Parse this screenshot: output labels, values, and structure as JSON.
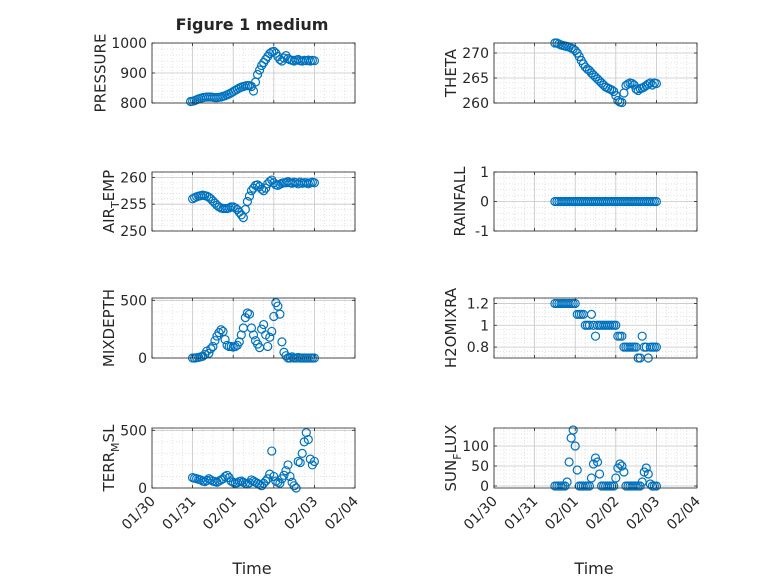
{
  "figure": {
    "title": "Figure 1 medium",
    "xlabel": "Time",
    "marker_color": "#0072BD",
    "grid": true
  },
  "chart_data": [
    {
      "type": "scatter",
      "ylabel": "PRESSURE",
      "ylim": [
        800,
        1000
      ],
      "yticks": [
        "800",
        "900",
        "1000"
      ],
      "ytick_values": [
        800,
        900,
        1000
      ],
      "x": [
        0.95,
        1.0,
        1.05,
        1.1,
        1.15,
        1.2,
        1.25,
        1.3,
        1.35,
        1.4,
        1.45,
        1.5,
        1.55,
        1.6,
        1.65,
        1.7,
        1.75,
        1.8,
        1.85,
        1.9,
        1.95,
        2.0,
        2.05,
        2.1,
        2.15,
        2.2,
        2.25,
        2.3,
        2.35,
        2.4,
        2.45,
        2.5,
        2.55,
        2.6,
        2.65,
        2.7,
        2.75,
        2.8,
        2.85,
        2.9,
        2.95,
        3.0,
        3.05,
        3.1,
        3.15,
        3.2,
        3.25,
        3.3,
        3.35,
        3.4,
        3.45,
        3.5,
        3.55,
        3.6,
        3.65,
        3.7,
        3.75,
        3.8,
        3.85,
        3.9,
        3.95,
        4.0
      ],
      "y": [
        805,
        806,
        808,
        811,
        814,
        816,
        818,
        819,
        820,
        820,
        820,
        819,
        818,
        818,
        819,
        820,
        822,
        824,
        827,
        830,
        834,
        838,
        842,
        846,
        850,
        853,
        855,
        857,
        858,
        858,
        855,
        840,
        870,
        895,
        910,
        925,
        935,
        945,
        955,
        965,
        970,
        972,
        966,
        955,
        945,
        940,
        950,
        958,
        948,
        944,
        942,
        940,
        943,
        945,
        941,
        940,
        942,
        941,
        943,
        940,
        942,
        941
      ]
    },
    {
      "type": "scatter",
      "ylabel": "THETA",
      "ylim": [
        260,
        272
      ],
      "yticks": [
        "260",
        "265",
        "270"
      ],
      "ytick_values": [
        260,
        265,
        270
      ],
      "x": [
        1.5,
        1.55,
        1.6,
        1.65,
        1.7,
        1.75,
        1.8,
        1.85,
        1.9,
        1.95,
        2.0,
        2.05,
        2.1,
        2.15,
        2.2,
        2.25,
        2.3,
        2.35,
        2.4,
        2.45,
        2.5,
        2.55,
        2.6,
        2.65,
        2.7,
        2.75,
        2.8,
        2.85,
        2.9,
        2.95,
        3.0,
        3.05,
        3.1,
        3.15,
        3.2,
        3.25,
        3.3,
        3.35,
        3.4,
        3.45,
        3.5,
        3.55,
        3.6,
        3.65,
        3.7,
        3.75,
        3.8,
        3.85,
        3.9,
        3.95,
        4.0
      ],
      "y": [
        272,
        272,
        271.8,
        271.6,
        271.5,
        271.4,
        271.3,
        271.2,
        271.0,
        270.8,
        270.5,
        270.0,
        269.3,
        268.5,
        267.8,
        267.2,
        266.8,
        266.5,
        266.0,
        265.6,
        265.2,
        264.8,
        264.4,
        264.0,
        263.6,
        263.2,
        263.0,
        262.8,
        262.6,
        262.3,
        261.5,
        260.5,
        260.2,
        260.1,
        262.0,
        263.5,
        263.8,
        264.0,
        263.9,
        263.6,
        262.8,
        262.5,
        262.9,
        263.0,
        263.2,
        263.5,
        263.8,
        264.0,
        263.6,
        264.0,
        263.9
      ]
    },
    {
      "type": "scatter",
      "ylabel": "AIR_TEMP",
      "ylim": [
        250,
        261
      ],
      "yticks": [
        "250",
        "255",
        "260"
      ],
      "ytick_values": [
        250,
        255,
        260
      ],
      "x": [
        1.0,
        1.05,
        1.1,
        1.15,
        1.2,
        1.25,
        1.3,
        1.35,
        1.4,
        1.45,
        1.5,
        1.55,
        1.6,
        1.65,
        1.7,
        1.75,
        1.8,
        1.85,
        1.9,
        1.95,
        2.0,
        2.05,
        2.1,
        2.15,
        2.2,
        2.25,
        2.3,
        2.35,
        2.4,
        2.45,
        2.5,
        2.55,
        2.6,
        2.65,
        2.7,
        2.75,
        2.8,
        2.85,
        2.9,
        2.95,
        3.0,
        3.05,
        3.1,
        3.15,
        3.2,
        3.25,
        3.3,
        3.35,
        3.4,
        3.45,
        3.5,
        3.55,
        3.6,
        3.65,
        3.7,
        3.75,
        3.8,
        3.85,
        3.9,
        3.95,
        4.0
      ],
      "y": [
        256.0,
        256.2,
        256.4,
        256.5,
        256.6,
        256.7,
        256.6,
        256.5,
        256.3,
        256.0,
        255.6,
        255.2,
        254.8,
        254.5,
        254.3,
        254.2,
        254.2,
        254.2,
        254.3,
        254.5,
        254.5,
        254.3,
        254.0,
        253.5,
        253.0,
        252.5,
        254.0,
        255.5,
        256.5,
        257.5,
        258.0,
        258.5,
        258.6,
        258.3,
        257.8,
        257.5,
        258.0,
        258.8,
        259.2,
        259.5,
        259.0,
        258.6,
        258.5,
        258.7,
        258.9,
        259.0,
        259.0,
        259.2,
        259.0,
        258.9,
        259.1,
        259.0,
        258.8,
        259.1,
        258.9,
        259.0,
        259.0,
        258.8,
        259.0,
        259.1,
        259.0
      ]
    },
    {
      "type": "scatter",
      "ylabel": "RAINFALL",
      "ylim": [
        -1,
        1
      ],
      "yticks": [
        "-1",
        "0",
        "1"
      ],
      "ytick_values": [
        -1,
        0,
        1
      ],
      "x": [
        1.5,
        1.55,
        1.6,
        1.65,
        1.7,
        1.75,
        1.8,
        1.85,
        1.9,
        1.95,
        2.0,
        2.05,
        2.1,
        2.15,
        2.2,
        2.25,
        2.3,
        2.35,
        2.4,
        2.45,
        2.5,
        2.55,
        2.6,
        2.65,
        2.7,
        2.75,
        2.8,
        2.85,
        2.9,
        2.95,
        3.0,
        3.05,
        3.1,
        3.15,
        3.2,
        3.25,
        3.3,
        3.35,
        3.4,
        3.45,
        3.5,
        3.55,
        3.6,
        3.65,
        3.7,
        3.75,
        3.8,
        3.85,
        3.9,
        3.95,
        4.0
      ],
      "y": [
        0,
        0,
        0,
        0,
        0,
        0,
        0,
        0,
        0,
        0,
        0,
        0,
        0,
        0,
        0,
        0,
        0,
        0,
        0,
        0,
        0,
        0,
        0,
        0,
        0,
        0,
        0,
        0,
        0,
        0,
        0,
        0,
        0,
        0,
        0,
        0,
        0,
        0,
        0,
        0,
        0,
        0,
        0,
        0,
        0,
        0,
        0,
        0,
        0,
        0,
        0
      ]
    },
    {
      "type": "scatter",
      "ylabel": "MIXDEPTH",
      "ylim": [
        0,
        520
      ],
      "yticks": [
        "0",
        "500"
      ],
      "ytick_values": [
        0,
        500
      ],
      "x": [
        1.0,
        1.05,
        1.1,
        1.15,
        1.2,
        1.25,
        1.3,
        1.35,
        1.4,
        1.45,
        1.5,
        1.55,
        1.6,
        1.65,
        1.7,
        1.75,
        1.8,
        1.85,
        1.9,
        1.95,
        2.0,
        2.05,
        2.1,
        2.15,
        2.2,
        2.25,
        2.3,
        2.35,
        2.4,
        2.45,
        2.5,
        2.55,
        2.6,
        2.65,
        2.7,
        2.75,
        2.8,
        2.85,
        2.9,
        2.95,
        3.0,
        3.05,
        3.1,
        3.15,
        3.2,
        3.25,
        3.3,
        3.35,
        3.4,
        3.45,
        3.5,
        3.55,
        3.6,
        3.65,
        3.7,
        3.75,
        3.8,
        3.85,
        3.9,
        3.95,
        4.0
      ],
      "y": [
        0,
        0,
        2,
        5,
        10,
        15,
        30,
        60,
        40,
        80,
        100,
        150,
        190,
        220,
        245,
        230,
        160,
        110,
        100,
        100,
        95,
        100,
        110,
        140,
        200,
        260,
        350,
        390,
        380,
        260,
        200,
        150,
        120,
        90,
        250,
        290,
        200,
        100,
        180,
        230,
        360,
        480,
        450,
        380,
        140,
        50,
        20,
        0,
        0,
        10,
        0,
        0,
        5,
        0,
        0,
        0,
        0,
        0,
        0,
        0,
        0
      ]
    },
    {
      "type": "scatter",
      "ylabel": "H2OMIXRA",
      "ylim": [
        0.7,
        1.25
      ],
      "yticks": [
        "0.8",
        "1",
        "1.2"
      ],
      "ytick_values": [
        0.8,
        1.0,
        1.2
      ],
      "x": [
        1.5,
        1.55,
        1.6,
        1.65,
        1.7,
        1.75,
        1.8,
        1.85,
        1.9,
        1.95,
        2.0,
        2.05,
        2.1,
        2.15,
        2.2,
        2.25,
        2.3,
        2.35,
        2.4,
        2.45,
        2.5,
        2.55,
        2.6,
        2.65,
        2.7,
        2.75,
        2.8,
        2.85,
        2.9,
        2.95,
        3.0,
        3.05,
        3.1,
        3.15,
        3.2,
        3.25,
        3.3,
        3.35,
        3.4,
        3.45,
        3.5,
        3.55,
        3.6,
        3.65,
        3.7,
        3.75,
        3.8,
        3.85,
        3.9,
        3.95,
        4.0
      ],
      "y": [
        1.2,
        1.2,
        1.2,
        1.2,
        1.2,
        1.2,
        1.2,
        1.2,
        1.2,
        1.2,
        1.2,
        1.1,
        1.1,
        1.1,
        1.1,
        1.0,
        1.0,
        1.0,
        1.1,
        1.0,
        0.9,
        1.0,
        1.0,
        1.0,
        1.0,
        1.0,
        1.0,
        1.0,
        1.0,
        1.0,
        1.0,
        0.9,
        0.9,
        0.9,
        0.8,
        0.8,
        0.8,
        0.8,
        0.8,
        0.8,
        0.8,
        0.7,
        0.7,
        0.9,
        0.8,
        0.8,
        0.7,
        0.8,
        0.8,
        0.8,
        0.8
      ]
    },
    {
      "type": "scatter",
      "ylabel": "TERR_MSL",
      "ylim": [
        0,
        520
      ],
      "yticks": [
        "0",
        "500"
      ],
      "ytick_values": [
        0,
        500
      ],
      "x": [
        1.0,
        1.05,
        1.1,
        1.15,
        1.2,
        1.25,
        1.3,
        1.35,
        1.4,
        1.45,
        1.5,
        1.55,
        1.6,
        1.65,
        1.7,
        1.75,
        1.8,
        1.85,
        1.9,
        1.95,
        2.0,
        2.05,
        2.1,
        2.15,
        2.2,
        2.25,
        2.3,
        2.35,
        2.4,
        2.45,
        2.5,
        2.55,
        2.6,
        2.65,
        2.7,
        2.75,
        2.8,
        2.85,
        2.9,
        2.95,
        3.0,
        3.05,
        3.1,
        3.15,
        3.2,
        3.25,
        3.3,
        3.35,
        3.4,
        3.45,
        3.5,
        3.55,
        3.6,
        3.65,
        3.7,
        3.75,
        3.8,
        3.85,
        3.9,
        3.95,
        4.0
      ],
      "y": [
        90,
        85,
        80,
        75,
        70,
        60,
        55,
        65,
        80,
        70,
        60,
        55,
        50,
        60,
        70,
        80,
        100,
        110,
        90,
        60,
        50,
        40,
        45,
        55,
        60,
        50,
        40,
        35,
        45,
        70,
        60,
        50,
        40,
        30,
        20,
        40,
        60,
        80,
        120,
        320,
        100,
        60,
        50,
        40,
        80,
        110,
        150,
        200,
        100,
        50,
        20,
        0,
        230,
        220,
        300,
        400,
        480,
        420,
        250,
        200,
        230
      ]
    },
    {
      "type": "scatter",
      "ylabel": "SUN_FLUX",
      "ylim": [
        -5,
        145
      ],
      "yticks": [
        "0",
        "50",
        "100"
      ],
      "ytick_values": [
        0,
        50,
        100
      ],
      "x": [
        1.5,
        1.55,
        1.6,
        1.65,
        1.7,
        1.75,
        1.8,
        1.85,
        1.9,
        1.95,
        2.0,
        2.05,
        2.1,
        2.15,
        2.2,
        2.25,
        2.3,
        2.35,
        2.4,
        2.45,
        2.5,
        2.55,
        2.6,
        2.65,
        2.7,
        2.75,
        2.8,
        2.85,
        2.9,
        2.95,
        3.0,
        3.05,
        3.1,
        3.15,
        3.2,
        3.25,
        3.3,
        3.35,
        3.4,
        3.45,
        3.5,
        3.55,
        3.6,
        3.65,
        3.7,
        3.75,
        3.8,
        3.85,
        3.9,
        3.95,
        4.0
      ],
      "y": [
        0,
        0,
        0,
        0,
        0,
        0,
        10,
        60,
        120,
        140,
        100,
        40,
        0,
        0,
        0,
        0,
        0,
        0,
        20,
        55,
        70,
        60,
        30,
        0,
        0,
        0,
        0,
        0,
        0,
        0,
        20,
        45,
        55,
        50,
        35,
        0,
        0,
        0,
        0,
        0,
        0,
        0,
        0,
        10,
        35,
        45,
        30,
        5,
        0,
        0,
        0
      ]
    }
  ],
  "layout_labels": {
    "xticks": [
      "01/30",
      "01/31",
      "02/01",
      "02/02",
      "02/03",
      "02/04"
    ],
    "xtick_values": [
      0,
      1,
      2,
      3,
      4,
      5
    ],
    "xlim": [
      0,
      5
    ]
  }
}
